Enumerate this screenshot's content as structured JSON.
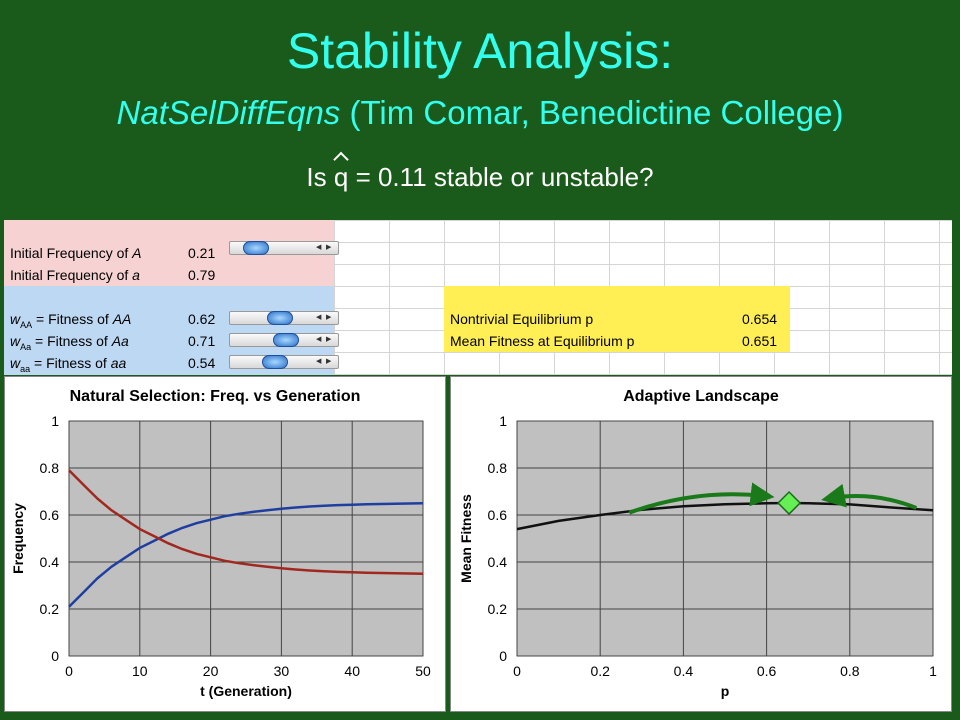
{
  "slide": {
    "title": "Stability Analysis:",
    "subtitle_italic": "NatSelDiffEqns",
    "subtitle_rest": " (Tim Comar, Benedictine College)",
    "question_pre": "Is ",
    "question_var": "q",
    "question_post": " = 0.11 stable or unstable?"
  },
  "spreadsheet": {
    "init_A_label": "Initial Frequency of A",
    "init_A_value": "0.21",
    "init_a_label": "Initial Frequency of a",
    "init_a_value": "0.79",
    "wAA_label": "w",
    "wAA_sub": "AA",
    "wAA_text": " = Fitness of AA",
    "wAA_value": "0.62",
    "wAa_sub": "Aa",
    "wAa_text": " = Fitness of Aa",
    "wAa_value": "0.71",
    "waa_sub": "aa",
    "waa_text": " = Fitness of aa",
    "waa_value": "0.54",
    "eq_label": "Nontrivial Equilibrium p",
    "eq_value": "0.654",
    "mf_label": "Mean Fitness at Equilibrium p",
    "mf_value": "0.651",
    "sliders": {
      "init_A": 0.21,
      "wAA": 0.62,
      "wAa": 0.71,
      "waa": 0.54
    }
  },
  "chart_data": [
    {
      "type": "line",
      "title": "Natural Selection: Freq. vs Generation",
      "xlabel": "t (Generation)",
      "ylabel": "Frequency",
      "xlim": [
        0,
        50
      ],
      "ylim": [
        0,
        1
      ],
      "xticks": [
        "0",
        "10",
        "20",
        "30",
        "40",
        "50"
      ],
      "yticks": [
        "0",
        "0.2",
        "0.4",
        "0.6",
        "0.8",
        "1"
      ],
      "grid": true,
      "series": [
        {
          "color": "#1f3fa0",
          "x": [
            0,
            2,
            4,
            6,
            8,
            10,
            12,
            14,
            16,
            18,
            20,
            22,
            24,
            26,
            28,
            30,
            32,
            34,
            36,
            38,
            40,
            42,
            44,
            46,
            48,
            50
          ],
          "values": [
            0.21,
            0.27,
            0.33,
            0.38,
            0.42,
            0.46,
            0.49,
            0.52,
            0.545,
            0.565,
            0.58,
            0.595,
            0.605,
            0.613,
            0.62,
            0.627,
            0.632,
            0.636,
            0.639,
            0.642,
            0.644,
            0.646,
            0.647,
            0.648,
            0.649,
            0.65
          ]
        },
        {
          "color": "#a0281e",
          "x": [
            0,
            2,
            4,
            6,
            8,
            10,
            12,
            14,
            16,
            18,
            20,
            22,
            24,
            26,
            28,
            30,
            32,
            34,
            36,
            38,
            40,
            42,
            44,
            46,
            48,
            50
          ],
          "values": [
            0.79,
            0.73,
            0.67,
            0.62,
            0.58,
            0.54,
            0.51,
            0.48,
            0.455,
            0.435,
            0.42,
            0.405,
            0.395,
            0.387,
            0.38,
            0.373,
            0.368,
            0.364,
            0.361,
            0.358,
            0.356,
            0.354,
            0.353,
            0.352,
            0.351,
            0.35
          ]
        }
      ]
    },
    {
      "type": "line",
      "title": "Adaptive Landscape",
      "xlabel": "p",
      "ylabel": "Mean Fitness",
      "xlim": [
        0,
        1
      ],
      "ylim": [
        0,
        1
      ],
      "xticks": [
        "0",
        "0.2",
        "0.4",
        "0.6",
        "0.8",
        "1"
      ],
      "yticks": [
        "0",
        "0.2",
        "0.4",
        "0.6",
        "0.8",
        "1"
      ],
      "grid": true,
      "series": [
        {
          "color": "#111111",
          "x": [
            0,
            0.1,
            0.2,
            0.3,
            0.4,
            0.5,
            0.6,
            0.654,
            0.7,
            0.8,
            0.9,
            1
          ],
          "values": [
            0.54,
            0.575,
            0.6,
            0.622,
            0.637,
            0.646,
            0.65,
            0.651,
            0.65,
            0.645,
            0.632,
            0.62
          ]
        }
      ],
      "marker": {
        "x": 0.654,
        "y": 0.651,
        "color": "#66ee55"
      },
      "arrows": [
        {
          "from": [
            0.27,
            0.61
          ],
          "to": [
            0.6,
            0.68
          ],
          "color": "#1a7a1a"
        },
        {
          "from": [
            0.96,
            0.63
          ],
          "to": [
            0.75,
            0.67
          ],
          "color": "#1a7a1a"
        }
      ]
    }
  ]
}
